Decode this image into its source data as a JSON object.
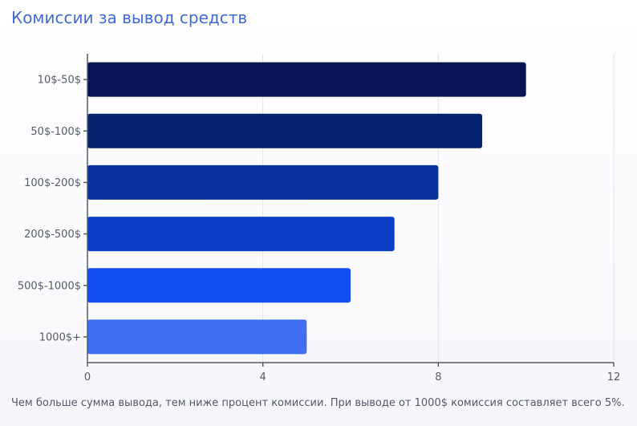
{
  "title": "Комиссии за вывод средств",
  "footnote": "Чем больше сумма вывода, тем ниже процент комиссии. При выводе от 1000$ комиссия составляет всего 5%.",
  "colors": {
    "title": "#3f6ad8",
    "bars": [
      "#061552",
      "#07236f",
      "#0a329d",
      "#0c3ec6",
      "#134ef2",
      "#3f6ef2"
    ],
    "grid": "#e3e5ea",
    "axis": "#555b66"
  },
  "chart_data": {
    "type": "bar",
    "orientation": "horizontal",
    "categories": [
      "10$-50$",
      "50$-100$",
      "100$-200$",
      "200$-500$",
      "500$-1000$",
      "1000$+"
    ],
    "values": [
      10,
      9,
      8,
      7,
      6,
      5
    ],
    "xlim": [
      0,
      12
    ],
    "x_ticks": [
      0,
      4,
      8,
      12
    ],
    "grid": "vertical",
    "legend": "none",
    "title": "Комиссии за вывод средств",
    "xlabel": "",
    "ylabel": ""
  }
}
